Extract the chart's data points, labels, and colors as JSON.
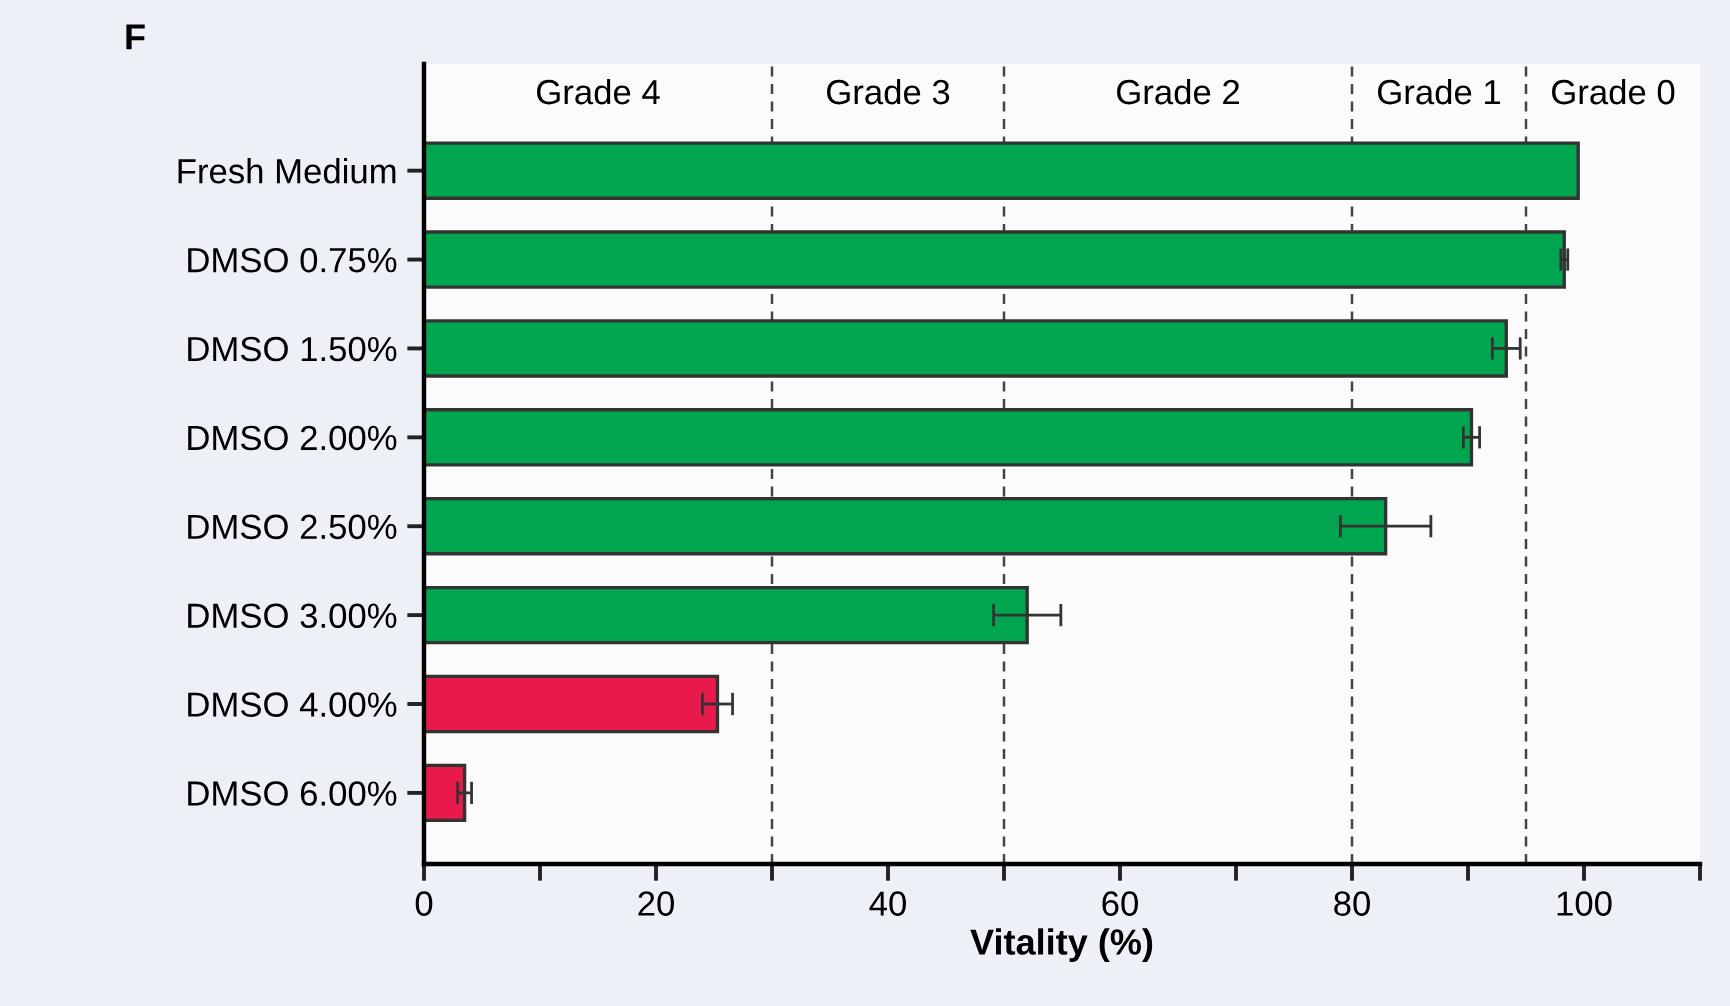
{
  "chart_data": {
    "type": "bar",
    "orientation": "horizontal",
    "xlabel": "Vitality (%)",
    "categories": [
      "Fresh Medium",
      "DMSO 0.75%",
      "DMSO 1.50%",
      "DMSO 2.00%",
      "DMSO 2.50%",
      "DMSO 3.00%",
      "DMSO 4.00%",
      "DMSO 6.00%"
    ],
    "values": [
      99.5,
      98.3,
      93.3,
      90.3,
      82.9,
      52.0,
      25.3,
      3.5
    ],
    "errors": [
      null,
      0.3,
      1.2,
      0.7,
      3.9,
      2.9,
      1.3,
      0.6
    ],
    "colors": [
      "#00a54f",
      "#00a54f",
      "#00a54f",
      "#00a54f",
      "#00a54f",
      "#00a54f",
      "#e8194b",
      "#e8194b"
    ],
    "xlim": [
      0,
      110
    ],
    "xticks": [
      0,
      {
        "value": 10,
        "label": null
      },
      20,
      {
        "value": 30,
        "label": null
      },
      40,
      {
        "value": 50,
        "label": null
      },
      60,
      {
        "value": 70,
        "label": null
      },
      80,
      {
        "value": 90,
        "label": null
      },
      100,
      {
        "value": 110,
        "label": null
      }
    ],
    "ref_lines": [
      {
        "axis": "x",
        "value": 30,
        "line_style": "dashed"
      },
      {
        "axis": "x",
        "value": 50,
        "line_style": "dashed"
      },
      {
        "axis": "x",
        "value": 80,
        "line_style": "dashed"
      },
      {
        "axis": "x",
        "value": 95,
        "line_style": "dashed"
      }
    ],
    "annotations": [
      "F",
      "Grade 4",
      "Grade 3",
      "Grade 2",
      "Grade 1",
      "Grade 0"
    ],
    "grid": false,
    "legend": false
  }
}
